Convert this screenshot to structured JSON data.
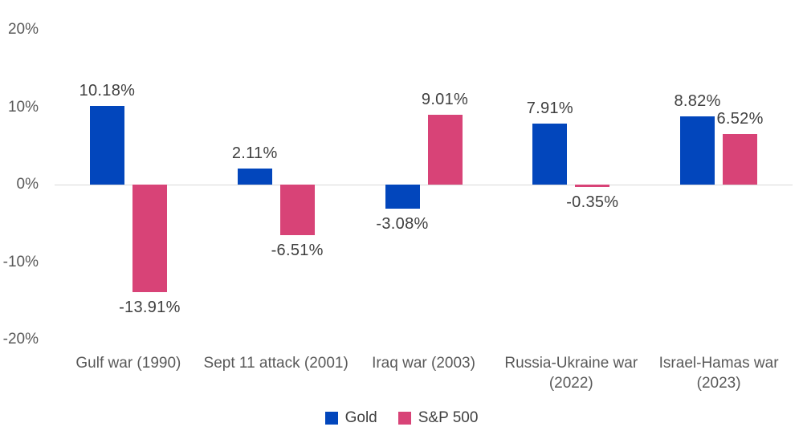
{
  "chart_data": {
    "type": "bar",
    "title": "",
    "categories": [
      "Gulf war (1990)",
      "Sept 11 attack (2001)",
      "Iraq war (2003)",
      "Russia-Ukraine war (2022)",
      "Israel-Hamas war (2023)"
    ],
    "category_lines": [
      [
        "Gulf war (1990)"
      ],
      [
        "Sept 11 attack (2001)"
      ],
      [
        "Iraq war (2003)"
      ],
      [
        "Russia-Ukraine war",
        "(2022)"
      ],
      [
        "Israel-Hamas war",
        "(2023)"
      ]
    ],
    "series": [
      {
        "name": "Gold",
        "color": "#0246BC",
        "values": [
          10.18,
          2.11,
          -3.08,
          7.91,
          8.82
        ],
        "labels": [
          "10.18%",
          "2.11%",
          "-3.08%",
          "7.91%",
          "8.82%"
        ]
      },
      {
        "name": "S&P 500",
        "color": "#D84377",
        "values": [
          -13.91,
          -6.51,
          9.01,
          -0.35,
          6.52
        ],
        "labels": [
          "-13.91%",
          "-6.51%",
          "9.01%",
          "-0.35%",
          "6.52%"
        ]
      }
    ],
    "yticks": [
      {
        "value": 20,
        "label": "20%"
      },
      {
        "value": 10,
        "label": "10%"
      },
      {
        "value": 0,
        "label": "0%"
      },
      {
        "value": -10,
        "label": "-10%"
      },
      {
        "value": -20,
        "label": "-20%"
      }
    ],
    "ylim": [
      -20,
      20
    ],
    "grid": "zero-line-only",
    "legend_position": "bottom-center",
    "colors": {
      "axis_line": "#D9D9D9",
      "tick_label": "#595959",
      "category_label": "#595959",
      "value_label": "#3F3F3F",
      "legend_label": "#3F3F3F",
      "background": "#FFFFFF"
    }
  }
}
